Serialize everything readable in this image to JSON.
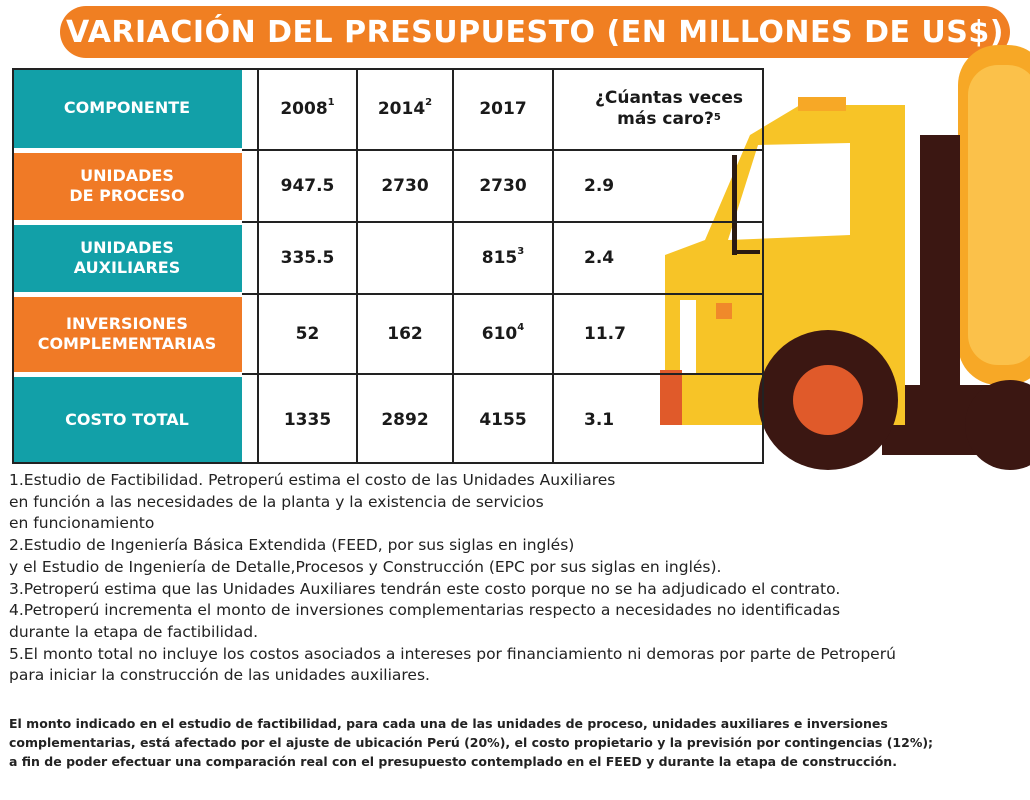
{
  "title": "VARIACIÓN DEL PRESUPUESTO (EN MILLONES DE US$)",
  "colors": {
    "banner": "#f07f22",
    "teal": "#12a0a8",
    "orange": "#f07a26",
    "truck_yellow": "#f7c427"
  },
  "table": {
    "header": {
      "component": "COMPONENTE",
      "y2008": "2008",
      "y2008_sup": "1",
      "y2014": "2014",
      "y2014_sup": "2",
      "y2017": "2017",
      "times_line1": "¿Cúantas veces",
      "times_line2": "más caro?",
      "times_sup": "5"
    },
    "rows": [
      {
        "line1": "UNIDADES",
        "line2": "DE PROCESO",
        "v2008": "947.5",
        "v2014": "2730",
        "v2017": "2730",
        "v2017_sup": "",
        "times": "2.9"
      },
      {
        "line1": "UNIDADES",
        "line2": "AUXILIARES",
        "v2008": "335.5",
        "v2014": "",
        "v2017": "815",
        "v2017_sup": "3",
        "times": "2.4"
      },
      {
        "line1": "INVERSIONES",
        "line2": "COMPLEMENTARIAS",
        "v2008": "52",
        "v2014": "162",
        "v2017": "610",
        "v2017_sup": "4",
        "times": "11.7"
      },
      {
        "line1": "COSTO TOTAL",
        "line2": "",
        "v2008": "1335",
        "v2014": "2892",
        "v2017": "4155",
        "v2017_sup": "",
        "times": "3.1"
      }
    ]
  },
  "notes": [
    "1.Estudio de Factibilidad. Petroperú estima el costo de las Unidades Auxiliares",
    "en función a las necesidades de la planta y la existencia de servicios",
    "en funcionamiento",
    "2.Estudio de Ingeniería Básica Extendida (FEED, por sus siglas en inglés)",
    "y el Estudio de Ingeniería de Detalle,Procesos y Construcción (EPC por sus siglas en inglés).",
    "3.Petroperú estima que las Unidades Auxiliares tendrán este costo porque no se ha adjudicado el contrato.",
    "4.Petroperú incrementa el monto de inversiones complementarias respecto a necesidades no identificadas",
    "durante la etapa de factibilidad.",
    "5.El monto total no incluye los costos asociados a intereses por financiamiento ni demoras por parte de Petroperú",
    "para iniciar la construcción de las unidades auxiliares."
  ],
  "disclaimer": [
    "El monto indicado en el estudio de factibilidad, para cada una de las unidades de proceso, unidades auxiliares e inversiones",
    "complementarias, está afectado por el ajuste de ubicación Perú (20%), el costo propietario y la previsión por contingencias (12%);",
    "a fin de poder efectuar una comparación real con el presupuesto contemplado en el FEED y durante la etapa de construcción."
  ]
}
